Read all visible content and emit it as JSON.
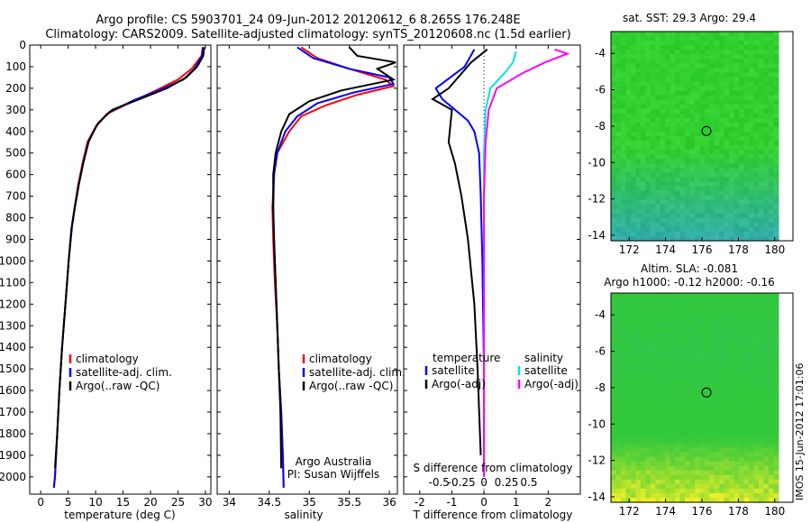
{
  "header": {
    "line1": "Argo profile: CS 5903701_24 09-Jun-2012 20120612_6 8.265S 176.248E",
    "line2": "Climatology: CARS2009. Satellite-adjusted climatology: synTS_20120608.nc (1.5d earlier)"
  },
  "stamp": "IMOS 15-Jun-2012 17:01:06",
  "colors": {
    "climatology": "#ff0000",
    "satellite": "#0000ff",
    "argo": "#000000",
    "sat_salinity": "#00e5e5",
    "argo_salinity": "#ff00ff",
    "map_green": "#2ed22e",
    "map_cyan": "#40e0c8",
    "map_yellow": "#d8ff20"
  },
  "chart_data": [
    {
      "type": "line",
      "panel": "temperature",
      "xlabel": "temperature (deg C)",
      "xticks": [
        0,
        5,
        10,
        15,
        20,
        25,
        30
      ],
      "xlim": [
        -2,
        31
      ],
      "ylim": [
        0,
        2080
      ],
      "yticks": [
        0,
        100,
        200,
        300,
        400,
        500,
        600,
        700,
        800,
        900,
        1000,
        1100,
        1200,
        1300,
        1400,
        1500,
        1600,
        1700,
        1800,
        1900,
        2000
      ],
      "legend": [
        "climatology",
        "satellite-adj. clim.",
        "Argo(..raw -QC)"
      ],
      "series": [
        {
          "name": "climatology",
          "color": "#ff0000",
          "points": [
            [
              29.5,
              10
            ],
            [
              29.3,
              50
            ],
            [
              27.5,
              110
            ],
            [
              25,
              160
            ],
            [
              21,
              210
            ],
            [
              16,
              270
            ],
            [
              12,
              320
            ],
            [
              10,
              380
            ],
            [
              8.5,
              450
            ],
            [
              7.6,
              550
            ],
            [
              6.8,
              650
            ],
            [
              6.2,
              750
            ],
            [
              5.6,
              850
            ],
            [
              5.1,
              1000
            ],
            [
              4.5,
              1200
            ],
            [
              3.9,
              1400
            ],
            [
              3.4,
              1600
            ],
            [
              3,
              1800
            ],
            [
              2.6,
              2000
            ],
            [
              2.4,
              2050
            ]
          ]
        },
        {
          "name": "satellite-adj. clim.",
          "color": "#0000ff",
          "points": [
            [
              29.6,
              10
            ],
            [
              29.4,
              50
            ],
            [
              28,
              110
            ],
            [
              26,
              160
            ],
            [
              22,
              205
            ],
            [
              17,
              255
            ],
            [
              12.5,
              310
            ],
            [
              10.2,
              370
            ],
            [
              8.7,
              450
            ],
            [
              7.7,
              550
            ],
            [
              6.9,
              650
            ],
            [
              6.2,
              750
            ],
            [
              5.6,
              850
            ],
            [
              5.1,
              1000
            ],
            [
              4.5,
              1200
            ],
            [
              3.9,
              1400
            ],
            [
              3.4,
              1600
            ],
            [
              3,
              1800
            ],
            [
              2.6,
              2000
            ],
            [
              2.4,
              2050
            ]
          ]
        },
        {
          "name": "Argo(..raw -QC)",
          "color": "#000000",
          "points": [
            [
              29.8,
              10
            ],
            [
              29.6,
              50
            ],
            [
              28.5,
              100
            ],
            [
              26.5,
              150
            ],
            [
              23,
              200
            ],
            [
              18,
              250
            ],
            [
              13,
              300
            ],
            [
              10.5,
              360
            ],
            [
              8.8,
              440
            ],
            [
              7.8,
              540
            ],
            [
              7,
              640
            ],
            [
              6.3,
              740
            ],
            [
              5.7,
              840
            ],
            [
              5.1,
              1000
            ],
            [
              4.5,
              1200
            ],
            [
              3.9,
              1400
            ],
            [
              3.4,
              1600
            ],
            [
              3,
              1800
            ],
            [
              2.6,
              1960
            ]
          ]
        }
      ]
    },
    {
      "type": "line",
      "panel": "salinity",
      "xlabel": "salinity",
      "xticks": [
        34,
        34.5,
        35,
        35.5,
        36
      ],
      "xlim": [
        33.85,
        36.1
      ],
      "ylim": [
        0,
        2080
      ],
      "legend": [
        "climatology",
        "satellite-adj. clim.",
        "Argo(..raw -QC)"
      ],
      "annotation": [
        "Argo Australia",
        "PI: Susan Wijffels"
      ],
      "series": [
        {
          "name": "climatology",
          "color": "#ff0000",
          "points": [
            [
              34.9,
              10
            ],
            [
              35.1,
              60
            ],
            [
              35.5,
              110
            ],
            [
              35.95,
              160
            ],
            [
              36.05,
              190
            ],
            [
              35.6,
              230
            ],
            [
              35.2,
              280
            ],
            [
              34.9,
              330
            ],
            [
              34.75,
              400
            ],
            [
              34.6,
              500
            ],
            [
              34.56,
              600
            ],
            [
              34.54,
              750
            ],
            [
              34.55,
              900
            ],
            [
              34.57,
              1100
            ],
            [
              34.6,
              1300
            ],
            [
              34.62,
              1500
            ],
            [
              34.65,
              1700
            ],
            [
              34.67,
              1900
            ],
            [
              34.68,
              2050
            ]
          ]
        },
        {
          "name": "satellite-adj. clim.",
          "color": "#0000ff",
          "points": [
            [
              34.85,
              10
            ],
            [
              35.05,
              60
            ],
            [
              35.5,
              110
            ],
            [
              36,
              150
            ],
            [
              36.05,
              180
            ],
            [
              35.55,
              220
            ],
            [
              35.1,
              270
            ],
            [
              34.85,
              330
            ],
            [
              34.7,
              400
            ],
            [
              34.6,
              500
            ],
            [
              34.56,
              600
            ],
            [
              34.55,
              750
            ],
            [
              34.56,
              900
            ],
            [
              34.58,
              1100
            ],
            [
              34.6,
              1300
            ],
            [
              34.62,
              1500
            ],
            [
              34.65,
              1700
            ],
            [
              34.67,
              1900
            ],
            [
              34.68,
              2050
            ]
          ]
        },
        {
          "name": "Argo(..raw -QC)",
          "color": "#000000",
          "points": [
            [
              35.5,
              10
            ],
            [
              35.6,
              50
            ],
            [
              36.08,
              80
            ],
            [
              35.85,
              110
            ],
            [
              36.05,
              160
            ],
            [
              35.4,
              210
            ],
            [
              35.0,
              260
            ],
            [
              34.75,
              320
            ],
            [
              34.65,
              400
            ],
            [
              34.58,
              500
            ],
            [
              34.55,
              600
            ],
            [
              34.55,
              750
            ],
            [
              34.56,
              900
            ],
            [
              34.58,
              1100
            ],
            [
              34.6,
              1300
            ],
            [
              34.62,
              1500
            ],
            [
              34.64,
              1700
            ],
            [
              34.65,
              1960
            ]
          ]
        }
      ]
    },
    {
      "type": "line",
      "panel": "difference",
      "xlabel": "T difference from climatology",
      "xlabel2": "S difference from climatology",
      "xticks": [
        -2,
        -1,
        0,
        1,
        2
      ],
      "xticks_s": [
        "-0.5",
        "-0.25",
        "0",
        "0.25",
        "0.5"
      ],
      "xlim": [
        -2.5,
        3
      ],
      "ylim": [
        0,
        2080
      ],
      "legend_titles": [
        "temperature",
        "salinity"
      ],
      "legend": [
        "satellite",
        "Argo(-adj)",
        "satellite",
        "Argo(-adj)"
      ],
      "series": [
        {
          "name": "satellite",
          "color": "#0000ff",
          "points": [
            [
              -0.3,
              20
            ],
            [
              -0.6,
              100
            ],
            [
              -1.5,
              200
            ],
            [
              -1.3,
              250
            ],
            [
              -0.9,
              300
            ],
            [
              -0.5,
              350
            ],
            [
              -0.3,
              400
            ],
            [
              -0.15,
              500
            ],
            [
              -0.1,
              700
            ],
            [
              -0.05,
              1000
            ],
            [
              0,
              1500
            ],
            [
              0,
              2000
            ]
          ]
        },
        {
          "name": "Argo(-adj)",
          "color": "#000000",
          "points": [
            [
              0.1,
              20
            ],
            [
              -0.4,
              80
            ],
            [
              -1.1,
              200
            ],
            [
              -1.6,
              250
            ],
            [
              -1.0,
              300
            ],
            [
              -1.1,
              450
            ],
            [
              -0.9,
              550
            ],
            [
              -0.7,
              700
            ],
            [
              -0.5,
              900
            ],
            [
              -0.3,
              1200
            ],
            [
              -0.2,
              1500
            ],
            [
              -0.1,
              1900
            ]
          ]
        },
        {
          "name": "satellite",
          "color": "#00e5e5",
          "points": [
            [
              1.0,
              30
            ],
            [
              0.9,
              80
            ],
            [
              0.7,
              120
            ],
            [
              0.2,
              200
            ],
            [
              0.05,
              300
            ],
            [
              0.0,
              500
            ],
            [
              0.0,
              1000
            ],
            [
              0.0,
              2000
            ]
          ]
        },
        {
          "name": "Argo(-adj)",
          "color": "#ff00ff",
          "points": [
            [
              2.2,
              20
            ],
            [
              2.6,
              40
            ],
            [
              1.9,
              80
            ],
            [
              1.2,
              130
            ],
            [
              0.4,
              200
            ],
            [
              0.15,
              300
            ],
            [
              0.05,
              450
            ],
            [
              0,
              700
            ],
            [
              0,
              1000
            ],
            [
              0,
              1500
            ],
            [
              0,
              2000
            ]
          ]
        }
      ]
    },
    {
      "type": "heatmap",
      "panel": "sst-map",
      "title": "sat. SST: 29.3 Argo: 29.4",
      "xticks": [
        "172",
        "174",
        "176",
        "178",
        "180"
      ],
      "yticks": [
        "-4",
        "-6",
        "-8",
        "-10",
        "-12",
        "-14"
      ],
      "xlim": [
        171,
        181
      ],
      "ylim": [
        -14.3,
        -2.8
      ],
      "marker": [
        176.248,
        -8.265
      ]
    },
    {
      "type": "heatmap",
      "panel": "sla-map",
      "title": [
        "Altim. SLA: -0.081",
        "Argo h1000: -0.12 h2000: -0.16"
      ],
      "xticks": [
        "172",
        "174",
        "176",
        "178",
        "180"
      ],
      "yticks": [
        "-4",
        "-6",
        "-8",
        "-10",
        "-12",
        "-14"
      ],
      "xlim": [
        171,
        181
      ],
      "ylim": [
        -14.3,
        -2.8
      ],
      "marker": [
        176.248,
        -8.265
      ]
    }
  ]
}
